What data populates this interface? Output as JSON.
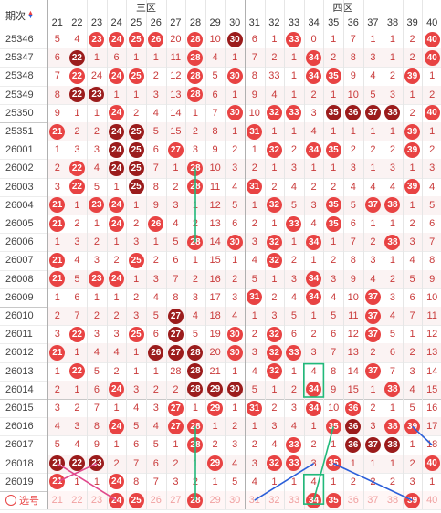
{
  "header": {
    "period_label": "期次",
    "zone3_label": "三区",
    "zone4_label": "四区",
    "numbers": [
      "21",
      "22",
      "23",
      "24",
      "25",
      "26",
      "27",
      "28",
      "29",
      "30",
      "31",
      "32",
      "33",
      "34",
      "35",
      "36",
      "37",
      "38",
      "39",
      "40"
    ]
  },
  "footer": {
    "select_label": "选号"
  },
  "colors": {
    "red": "#e84343",
    "dark": "#9b1c1c",
    "accent_green": "#21b97a",
    "accent_blue": "#2b5fd9",
    "accent_pink": "#e0488c"
  },
  "rows": [
    {
      "period": "25346",
      "cells": [
        "5",
        "4",
        "23",
        "24",
        "25",
        "26",
        "20",
        "28",
        "10",
        "30",
        "6",
        "1",
        "33",
        "0",
        "1",
        "7",
        "1",
        "1",
        "2",
        "40"
      ]
    },
    {
      "period": "25347",
      "cells": [
        "6",
        "22",
        "1",
        "6",
        "1",
        "1",
        "11",
        "28",
        "4",
        "1",
        "7",
        "2",
        "1",
        "34",
        "2",
        "8",
        "3",
        "1",
        "2",
        "40"
      ]
    },
    {
      "period": "25348",
      "cells": [
        "7",
        "22",
        "24",
        "24",
        "25",
        "2",
        "12",
        "28",
        "5",
        "30",
        "8",
        "33",
        "1",
        "34",
        "35",
        "9",
        "4",
        "2",
        "39",
        "1"
      ]
    },
    {
      "period": "25349",
      "cells": [
        "8",
        "22",
        "23",
        "1",
        "1",
        "3",
        "13",
        "28",
        "6",
        "1",
        "9",
        "4",
        "1",
        "2",
        "1",
        "10",
        "5",
        "3",
        "1",
        "2"
      ]
    },
    {
      "period": "25350",
      "cells": [
        "9",
        "1",
        "1",
        "24",
        "2",
        "4",
        "14",
        "1",
        "7",
        "30",
        "10",
        "32",
        "33",
        "3",
        "35",
        "36",
        "37",
        "38",
        "2",
        "40"
      ]
    },
    {
      "period": "25351",
      "cells": [
        "21",
        "2",
        "2",
        "24",
        "25",
        "5",
        "15",
        "2",
        "8",
        "1",
        "31",
        "1",
        "1",
        "4",
        "1",
        "1",
        "1",
        "1",
        "39",
        "1"
      ]
    },
    {
      "period": "26001",
      "cells": [
        "1",
        "3",
        "3",
        "24",
        "25",
        "6",
        "27",
        "3",
        "9",
        "2",
        "1",
        "32",
        "2",
        "34",
        "35",
        "2",
        "2",
        "2",
        "39",
        "2"
      ]
    },
    {
      "period": "26002",
      "cells": [
        "2",
        "22",
        "4",
        "24",
        "25",
        "7",
        "1",
        "28",
        "10",
        "3",
        "2",
        "1",
        "3",
        "1",
        "1",
        "3",
        "1",
        "3",
        "1",
        "3"
      ]
    },
    {
      "period": "26003",
      "cells": [
        "3",
        "22",
        "5",
        "1",
        "25",
        "8",
        "2",
        "28",
        "11",
        "4",
        "31",
        "2",
        "4",
        "2",
        "2",
        "4",
        "4",
        "4",
        "39",
        "4"
      ]
    },
    {
      "period": "26004",
      "cells": [
        "21",
        "1",
        "23",
        "24",
        "1",
        "9",
        "3",
        "1",
        "12",
        "5",
        "1",
        "32",
        "5",
        "3",
        "35",
        "5",
        "37",
        "38",
        "1",
        "5"
      ]
    },
    {
      "period": "26005",
      "cells": [
        "21",
        "2",
        "1",
        "24",
        "2",
        "26",
        "4",
        "2",
        "13",
        "6",
        "2",
        "1",
        "33",
        "4",
        "35",
        "6",
        "1",
        "1",
        "2",
        "6"
      ]
    },
    {
      "period": "26006",
      "cells": [
        "1",
        "3",
        "2",
        "1",
        "3",
        "1",
        "5",
        "28",
        "14",
        "30",
        "3",
        "32",
        "1",
        "34",
        "1",
        "7",
        "2",
        "38",
        "3",
        "7"
      ]
    },
    {
      "period": "26007",
      "cells": [
        "21",
        "4",
        "3",
        "2",
        "25",
        "2",
        "6",
        "1",
        "15",
        "1",
        "4",
        "32",
        "2",
        "1",
        "2",
        "8",
        "3",
        "1",
        "4",
        "8"
      ]
    },
    {
      "period": "26008",
      "cells": [
        "21",
        "5",
        "23",
        "24",
        "1",
        "3",
        "7",
        "2",
        "16",
        "2",
        "5",
        "1",
        "3",
        "34",
        "3",
        "9",
        "4",
        "2",
        "5",
        "9"
      ]
    },
    {
      "period": "26009",
      "cells": [
        "1",
        "6",
        "1",
        "1",
        "2",
        "4",
        "8",
        "3",
        "17",
        "3",
        "31",
        "2",
        "4",
        "34",
        "4",
        "10",
        "37",
        "3",
        "6",
        "10"
      ]
    },
    {
      "period": "26010",
      "cells": [
        "2",
        "7",
        "2",
        "2",
        "3",
        "5",
        "27",
        "4",
        "18",
        "4",
        "1",
        "3",
        "5",
        "1",
        "5",
        "11",
        "37",
        "4",
        "7",
        "11"
      ]
    },
    {
      "period": "26011",
      "cells": [
        "3",
        "22",
        "3",
        "3",
        "25",
        "6",
        "27",
        "5",
        "19",
        "30",
        "2",
        "32",
        "6",
        "2",
        "6",
        "12",
        "37",
        "5",
        "1",
        "12"
      ]
    },
    {
      "period": "26012",
      "cells": [
        "21",
        "1",
        "4",
        "4",
        "1",
        "26",
        "27",
        "28",
        "20",
        "30",
        "3",
        "32",
        "33",
        "3",
        "7",
        "13",
        "2",
        "6",
        "2",
        "13"
      ]
    },
    {
      "period": "26013",
      "cells": [
        "1",
        "22",
        "5",
        "2",
        "1",
        "1",
        "28",
        "28",
        "21",
        "1",
        "4",
        "32",
        "1",
        "4",
        "8",
        "14",
        "37",
        "7",
        "3",
        "14"
      ]
    },
    {
      "period": "26014",
      "cells": [
        "2",
        "1",
        "6",
        "24",
        "3",
        "2",
        "2",
        "28",
        "29",
        "30",
        "5",
        "1",
        "2",
        "34",
        "9",
        "15",
        "1",
        "38",
        "4",
        "15"
      ]
    },
    {
      "period": "26015",
      "cells": [
        "3",
        "2",
        "7",
        "1",
        "4",
        "3",
        "27",
        "1",
        "29",
        "1",
        "31",
        "2",
        "3",
        "34",
        "10",
        "36",
        "2",
        "1",
        "5",
        "16"
      ]
    },
    {
      "period": "26016",
      "cells": [
        "4",
        "3",
        "8",
        "24",
        "5",
        "4",
        "27",
        "28",
        "1",
        "2",
        "1",
        "3",
        "4",
        "1",
        "35",
        "36",
        "3",
        "38",
        "39",
        "17"
      ]
    },
    {
      "period": "26017",
      "cells": [
        "5",
        "4",
        "9",
        "1",
        "6",
        "5",
        "1",
        "28",
        "2",
        "3",
        "2",
        "4",
        "33",
        "2",
        "1",
        "36",
        "37",
        "38",
        "1",
        "18"
      ]
    },
    {
      "period": "26018",
      "cells": [
        "21",
        "22",
        "23",
        "2",
        "7",
        "6",
        "2",
        "1",
        "29",
        "4",
        "3",
        "32",
        "33",
        "3",
        "35",
        "1",
        "1",
        "1",
        "2",
        "40"
      ]
    },
    {
      "period": "26019",
      "cells": [
        "21",
        "1",
        "1",
        "24",
        "8",
        "7",
        "3",
        "2",
        "1",
        "5",
        "4",
        "1",
        "1",
        "4",
        "1",
        "2",
        "2",
        "2",
        "3",
        "1"
      ]
    },
    {
      "period": "footer",
      "cells": [
        "21",
        "22",
        "23",
        "24",
        "25",
        "26",
        "27",
        "28",
        "29",
        "30",
        "31",
        "32",
        "33",
        "34",
        "35",
        "36",
        "37",
        "38",
        "39",
        "40"
      ]
    }
  ]
}
